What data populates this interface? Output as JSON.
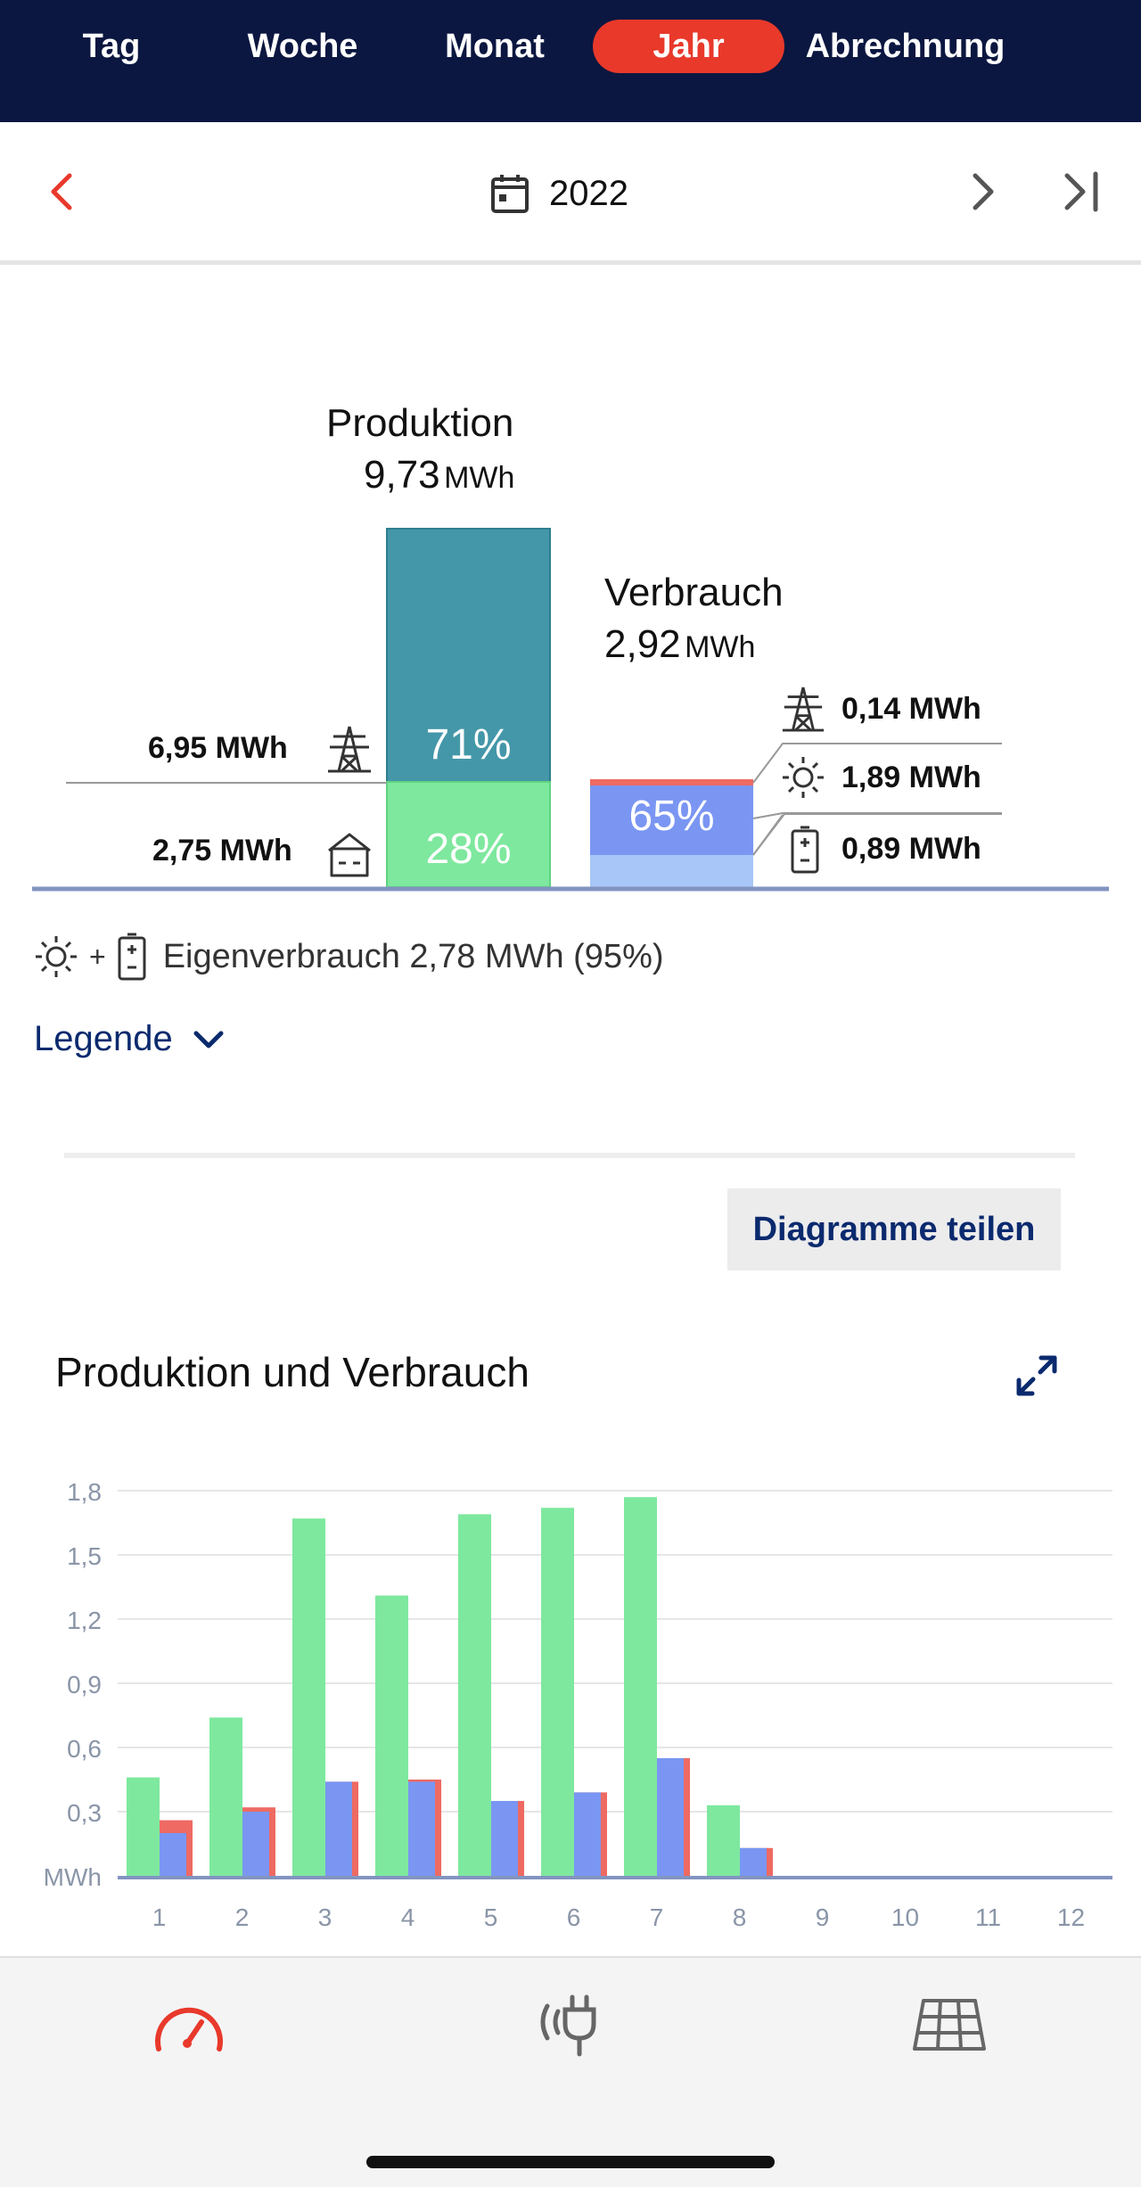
{
  "tabs": [
    {
      "label": "Tag",
      "active": false
    },
    {
      "label": "Woche",
      "active": false
    },
    {
      "label": "Monat",
      "active": false
    },
    {
      "label": "Jahr",
      "active": true
    },
    {
      "label": "Abrechnung",
      "active": false
    }
  ],
  "period": {
    "label": "2022"
  },
  "production": {
    "title": "Produktion",
    "value": "9,73",
    "unit": "MWh",
    "grid_export": "6,95 MWh",
    "self_use": "2,75 MWh",
    "grid_pct": "71%",
    "self_pct": "28%"
  },
  "consumption": {
    "title": "Verbrauch",
    "value": "2,92",
    "unit": "MWh",
    "pct": "65%",
    "from_grid": "0,14 MWh",
    "from_solar": "1,89 MWh",
    "from_battery": "0,89 MWh"
  },
  "self_consumption": {
    "plus": "+",
    "text": "Eigenverbrauch 2,78 MWh (95%)"
  },
  "legend": {
    "label": "Legende"
  },
  "share_button": "Diagramme teilen",
  "chart_title": "Produktion und Verbrauch",
  "chart_data": {
    "type": "bar",
    "categories": [
      "1",
      "2",
      "3",
      "4",
      "5",
      "6",
      "7",
      "8",
      "9",
      "10",
      "11",
      "12"
    ],
    "ylabel": "MWh",
    "ylim": [
      0,
      1.8
    ],
    "yticks": [
      "MWh",
      "0,3",
      "0,6",
      "0,9",
      "1,2",
      "1,5",
      "1,8"
    ],
    "series": [
      {
        "color": "#7ee89e",
        "values": [
          0.46,
          0.74,
          1.67,
          1.31,
          1.69,
          1.72,
          1.77,
          0.33,
          0,
          0,
          0,
          0
        ]
      },
      {
        "color": "#7a96f2",
        "values": [
          0.2,
          0.3,
          0.44,
          0.44,
          0.35,
          0.39,
          0.55,
          0.13,
          0,
          0,
          0,
          0
        ]
      },
      {
        "color": "#ee6a62",
        "values": [
          0.26,
          0.32,
          0.44,
          0.45,
          0.35,
          0.39,
          0.55,
          0.13,
          0,
          0,
          0,
          0
        ]
      }
    ],
    "grid": true
  },
  "colors": {
    "accent": "#e8392b",
    "navy": "#0b1740",
    "production_grid": "#4497a8",
    "production_self": "#7ee89e",
    "consumption_solar": "#7a96f2",
    "consumption_battery": "#a9c6f8",
    "consumption_grid": "#ee6a62"
  },
  "bottom_nav": [
    {
      "icon": "gauge-icon",
      "active": true
    },
    {
      "icon": "plug-icon",
      "active": false
    },
    {
      "icon": "solar-panel-icon",
      "active": false
    }
  ]
}
